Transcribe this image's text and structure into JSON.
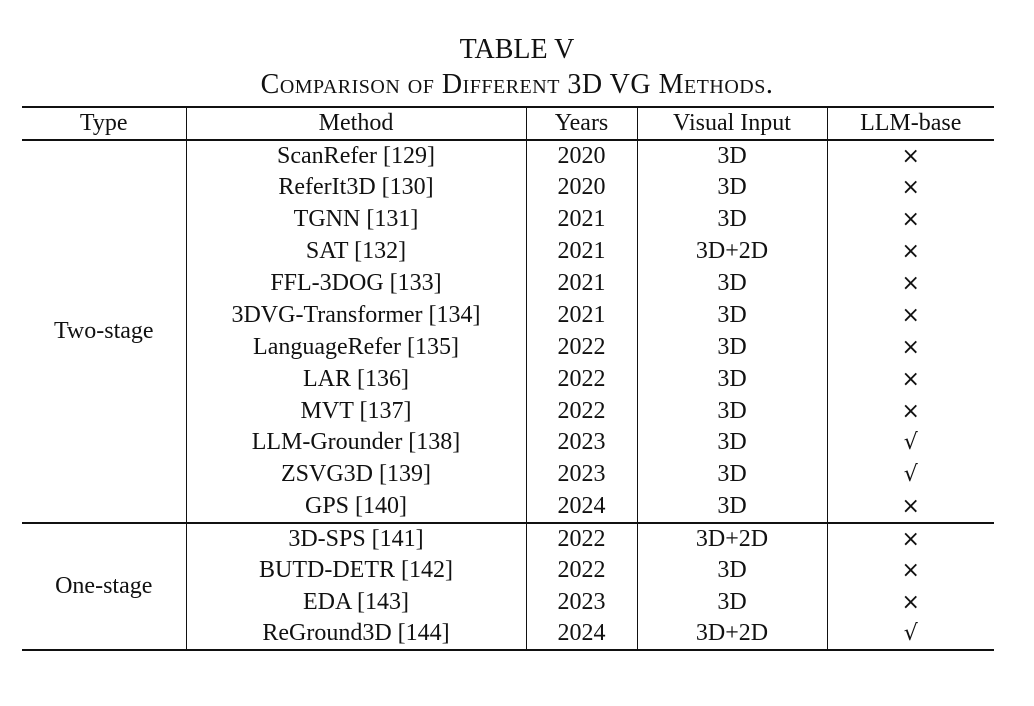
{
  "caption": {
    "label": "TABLE V",
    "title": "Comparison of Different 3D VG Methods."
  },
  "columns": [
    "Type",
    "Method",
    "Years",
    "Visual Input",
    "LLM-base"
  ],
  "groups": [
    {
      "type": "Two-stage",
      "rows": [
        {
          "method": "ScanRefer [129]",
          "year": "2020",
          "input": "3D",
          "llm": "×"
        },
        {
          "method": "ReferIt3D [130]",
          "year": "2020",
          "input": "3D",
          "llm": "×"
        },
        {
          "method": "TGNN [131]",
          "year": "2021",
          "input": "3D",
          "llm": "×"
        },
        {
          "method": "SAT [132]",
          "year": "2021",
          "input": "3D+2D",
          "llm": "×"
        },
        {
          "method": "FFL-3DOG [133]",
          "year": "2021",
          "input": "3D",
          "llm": "×"
        },
        {
          "method": "3DVG-Transformer [134]",
          "year": "2021",
          "input": "3D",
          "llm": "×"
        },
        {
          "method": "LanguageRefer [135]",
          "year": "2022",
          "input": "3D",
          "llm": "×"
        },
        {
          "method": "LAR [136]",
          "year": "2022",
          "input": "3D",
          "llm": "×"
        },
        {
          "method": "MVT [137]",
          "year": "2022",
          "input": "3D",
          "llm": "×"
        },
        {
          "method": "LLM-Grounder [138]",
          "year": "2023",
          "input": "3D",
          "llm": "√"
        },
        {
          "method": "ZSVG3D [139]",
          "year": "2023",
          "input": "3D",
          "llm": "√"
        },
        {
          "method": "GPS [140]",
          "year": "2024",
          "input": "3D",
          "llm": "×"
        }
      ]
    },
    {
      "type": "One-stage",
      "rows": [
        {
          "method": "3D-SPS [141]",
          "year": "2022",
          "input": "3D+2D",
          "llm": "×"
        },
        {
          "method": "BUTD-DETR [142]",
          "year": "2022",
          "input": "3D",
          "llm": "×"
        },
        {
          "method": "EDA [143]",
          "year": "2023",
          "input": "3D",
          "llm": "×"
        },
        {
          "method": "ReGround3D [144]",
          "year": "2024",
          "input": "3D+2D",
          "llm": "√"
        }
      ]
    }
  ]
}
